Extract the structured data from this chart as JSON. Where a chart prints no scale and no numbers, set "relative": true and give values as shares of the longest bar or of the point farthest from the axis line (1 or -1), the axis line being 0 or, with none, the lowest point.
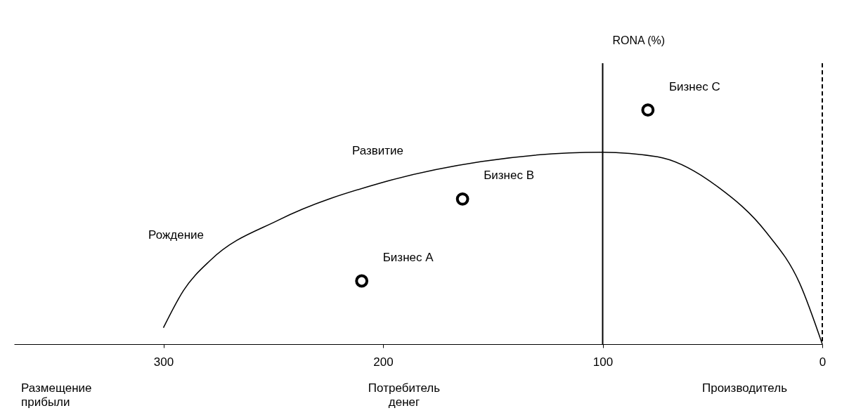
{
  "chart_data": {
    "type": "line",
    "relative": true,
    "xlim": [
      368,
      0
    ],
    "xticks": [
      300,
      200,
      100,
      0
    ],
    "series": [
      {
        "type": "line",
        "color": "#000000",
        "x": [
          300,
          290.8,
          278.4,
          247.6,
          200.5,
          155.2,
          100.3,
          75,
          47.3,
          25.7,
          10.3,
          0
        ],
        "values": [
          0.07,
          0.23,
          0.36,
          0.53,
          0.69,
          0.78,
          0.82,
          0.8,
          0.67,
          0.48,
          0.26,
          0
        ]
      },
      {
        "type": "scatter",
        "color": "#000000",
        "marker": "circle",
        "x": [
          209.7,
          163.8,
          79.4
        ],
        "values": [
          0.27,
          0.62,
          1
        ]
      }
    ],
    "ref_lines": [
      {
        "axis": "x",
        "value": 100,
        "line_style": "solid",
        "color": "#000000"
      },
      {
        "axis": "x",
        "value": 0,
        "line_style": "dashed",
        "color": "#000000"
      }
    ],
    "annotations": [
      "RONA (%)",
      {
        "text": "Рождение",
        "x": 278.4,
        "y": 0.36
      },
      {
        "text": "Развитие",
        "x": 187.5,
        "y": 0.72
      },
      {
        "text": "Бизнес A",
        "x": 209.7,
        "y": 0.27
      },
      {
        "text": "Бизнес B",
        "x": 163.8,
        "y": 0.62
      },
      {
        "text": "Бизнес C",
        "x": 79.4,
        "y": 1
      },
      "Размещение прибыли",
      "Потребитель денег",
      "Производитель"
    ]
  }
}
